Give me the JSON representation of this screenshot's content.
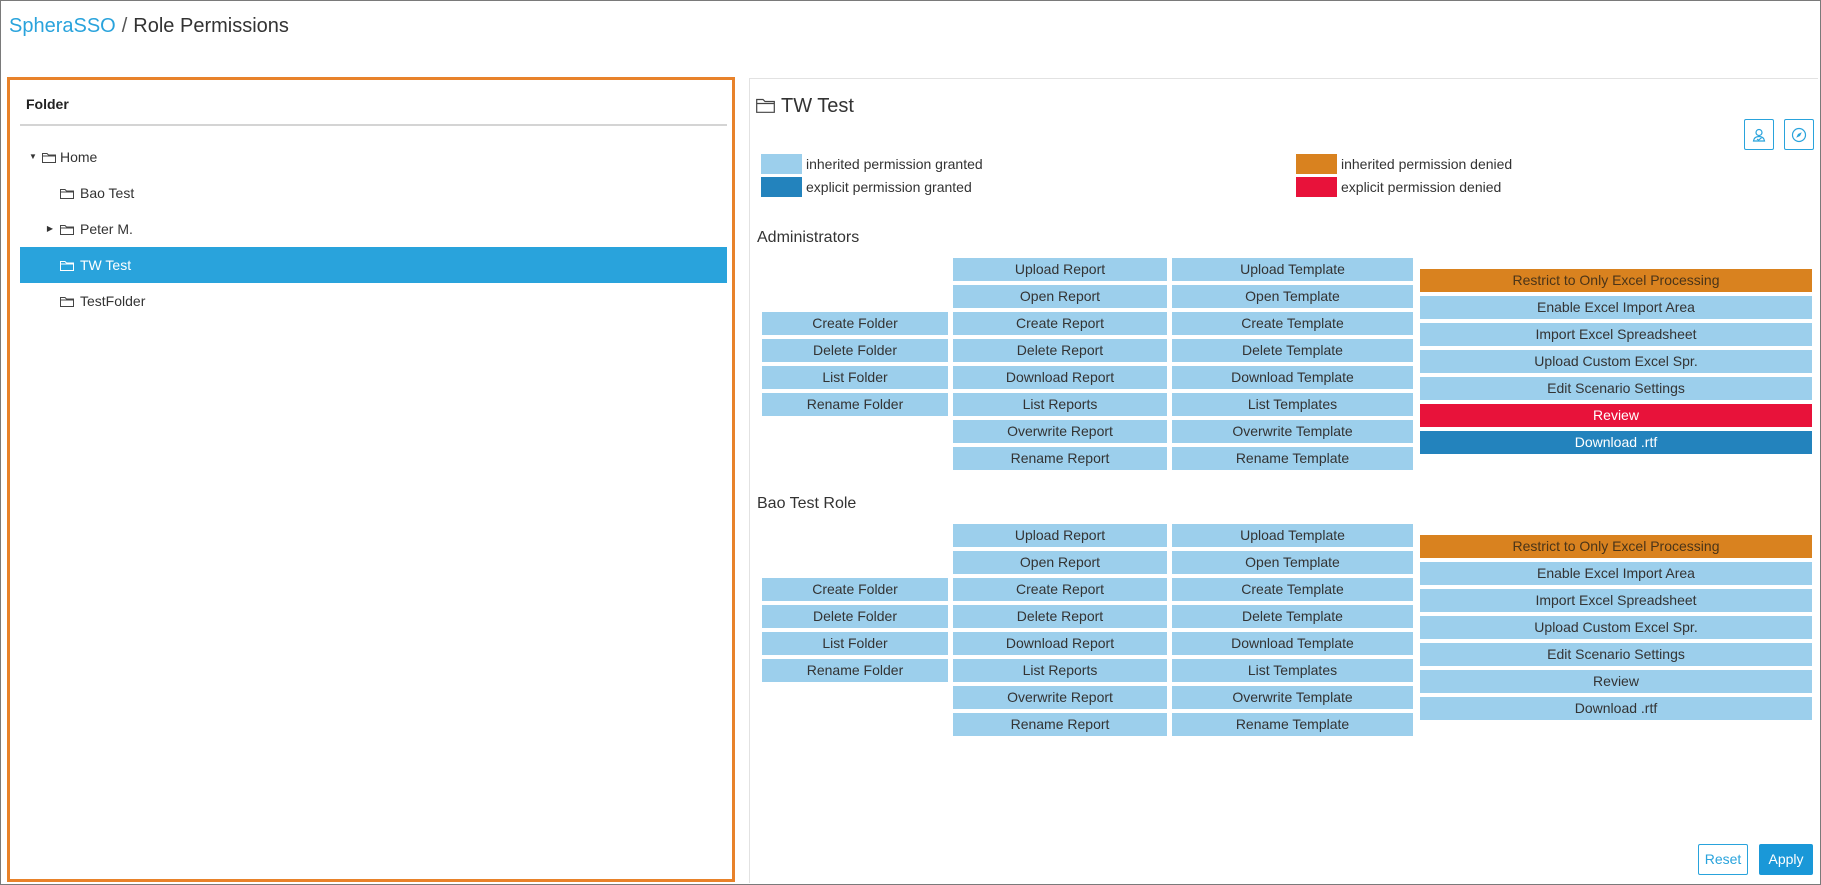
{
  "breadcrumb": {
    "root": "SpheraSSO",
    "separator": "/",
    "current": "Role Permissions"
  },
  "folder_panel": {
    "title": "Folder",
    "items": [
      {
        "label": "Home",
        "expanded": true,
        "selected": false
      },
      {
        "label": "Bao Test",
        "selected": false
      },
      {
        "label": "Peter M.",
        "expanded": false,
        "selected": false
      },
      {
        "label": "TW Test",
        "selected": true
      },
      {
        "label": "TestFolder",
        "selected": false
      }
    ]
  },
  "detail": {
    "title": "TW Test",
    "icons": [
      "user-permission-icon",
      "compass-icon"
    ],
    "legend": [
      {
        "label": "inherited permission granted",
        "color": "#9ccfec"
      },
      {
        "label": "explicit permission granted",
        "color": "#2383bd"
      },
      {
        "label": "inherited permission denied",
        "color": "#d9821f"
      },
      {
        "label": "explicit permission denied",
        "color": "#e8123a"
      }
    ],
    "roles": [
      {
        "name": "Administrators",
        "folder": [
          {
            "label": "Create Folder",
            "state": "inherited-granted"
          },
          {
            "label": "Delete Folder",
            "state": "inherited-granted"
          },
          {
            "label": "List Folder",
            "state": "inherited-granted"
          },
          {
            "label": "Rename Folder",
            "state": "inherited-granted"
          }
        ],
        "report": [
          {
            "label": "Upload Report",
            "state": "inherited-granted"
          },
          {
            "label": "Open Report",
            "state": "inherited-granted"
          },
          {
            "label": "Create Report",
            "state": "inherited-granted"
          },
          {
            "label": "Delete Report",
            "state": "inherited-granted"
          },
          {
            "label": "Download Report",
            "state": "inherited-granted"
          },
          {
            "label": "List Reports",
            "state": "inherited-granted"
          },
          {
            "label": "Overwrite Report",
            "state": "inherited-granted"
          },
          {
            "label": "Rename Report",
            "state": "inherited-granted"
          }
        ],
        "template": [
          {
            "label": "Upload Template",
            "state": "inherited-granted"
          },
          {
            "label": "Open Template",
            "state": "inherited-granted"
          },
          {
            "label": "Create Template",
            "state": "inherited-granted"
          },
          {
            "label": "Delete Template",
            "state": "inherited-granted"
          },
          {
            "label": "Download Template",
            "state": "inherited-granted"
          },
          {
            "label": "List Templates",
            "state": "inherited-granted"
          },
          {
            "label": "Overwrite Template",
            "state": "inherited-granted"
          },
          {
            "label": "Rename Template",
            "state": "inherited-granted"
          }
        ],
        "excel": [
          {
            "label": "Restrict to Only Excel Processing",
            "state": "inherited-denied"
          },
          {
            "label": "Enable Excel Import Area",
            "state": "inherited-granted"
          },
          {
            "label": "Import Excel Spreadsheet",
            "state": "inherited-granted"
          },
          {
            "label": "Upload Custom Excel Spr.",
            "state": "inherited-granted"
          },
          {
            "label": "Edit Scenario Settings",
            "state": "inherited-granted"
          },
          {
            "label": "Review",
            "state": "explicit-denied"
          },
          {
            "label": "Download .rtf",
            "state": "explicit-granted"
          }
        ]
      },
      {
        "name": "Bao Test Role",
        "folder": [
          {
            "label": "Create Folder",
            "state": "inherited-granted"
          },
          {
            "label": "Delete Folder",
            "state": "inherited-granted"
          },
          {
            "label": "List Folder",
            "state": "inherited-granted"
          },
          {
            "label": "Rename Folder",
            "state": "inherited-granted"
          }
        ],
        "report": [
          {
            "label": "Upload Report",
            "state": "inherited-granted"
          },
          {
            "label": "Open Report",
            "state": "inherited-granted"
          },
          {
            "label": "Create Report",
            "state": "inherited-granted"
          },
          {
            "label": "Delete Report",
            "state": "inherited-granted"
          },
          {
            "label": "Download Report",
            "state": "inherited-granted"
          },
          {
            "label": "List Reports",
            "state": "inherited-granted"
          },
          {
            "label": "Overwrite Report",
            "state": "inherited-granted"
          },
          {
            "label": "Rename Report",
            "state": "inherited-granted"
          }
        ],
        "template": [
          {
            "label": "Upload Template",
            "state": "inherited-granted"
          },
          {
            "label": "Open Template",
            "state": "inherited-granted"
          },
          {
            "label": "Create Template",
            "state": "inherited-granted"
          },
          {
            "label": "Delete Template",
            "state": "inherited-granted"
          },
          {
            "label": "Download Template",
            "state": "inherited-granted"
          },
          {
            "label": "List Templates",
            "state": "inherited-granted"
          },
          {
            "label": "Overwrite Template",
            "state": "inherited-granted"
          },
          {
            "label": "Rename Template",
            "state": "inherited-granted"
          }
        ],
        "excel": [
          {
            "label": "Restrict to Only Excel Processing",
            "state": "inherited-denied"
          },
          {
            "label": "Enable Excel Import Area",
            "state": "inherited-granted"
          },
          {
            "label": "Import Excel Spreadsheet",
            "state": "inherited-granted"
          },
          {
            "label": "Upload Custom Excel Spr.",
            "state": "inherited-granted"
          },
          {
            "label": "Edit Scenario Settings",
            "state": "inherited-granted"
          },
          {
            "label": "Review",
            "state": "inherited-granted"
          },
          {
            "label": "Download .rtf",
            "state": "inherited-granted"
          }
        ]
      }
    ],
    "buttons": {
      "reset": "Reset",
      "apply": "Apply"
    }
  }
}
